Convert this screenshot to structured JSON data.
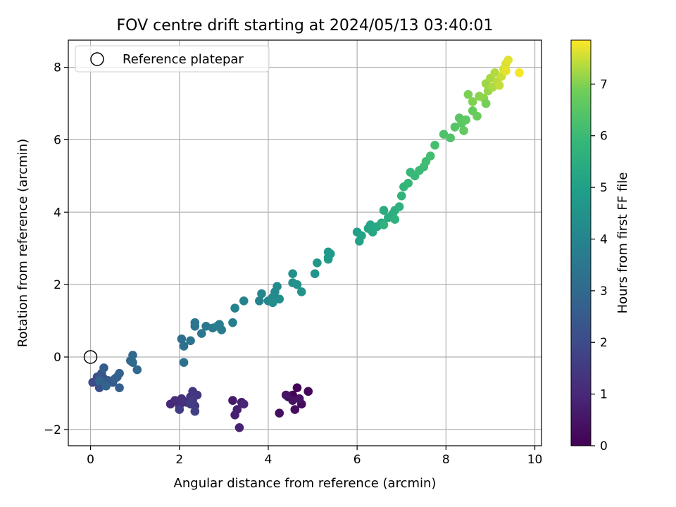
{
  "chart_data": {
    "type": "scatter",
    "title": "FOV centre drift starting at 2024/05/13 03:40:01",
    "xlabel": "Angular distance from reference (arcmin)",
    "ylabel": "Rotation from reference (arcmin)",
    "xlim": [
      -0.5,
      10.15
    ],
    "ylim": [
      -2.45,
      8.75
    ],
    "x_ticks": [
      0,
      2,
      4,
      6,
      8,
      10
    ],
    "y_ticks": [
      -2,
      0,
      2,
      4,
      6,
      8
    ],
    "grid": true,
    "legend": {
      "placement": "top-left",
      "entries": [
        "Reference platepar"
      ]
    },
    "reference_point": {
      "x": 0,
      "y": 0,
      "label": "Reference platepar"
    },
    "colorbar": {
      "label": "Hours from first FF file",
      "range": [
        0,
        7.85
      ],
      "ticks": [
        0,
        1,
        2,
        3,
        4,
        5,
        6,
        7
      ],
      "colormap": "viridis"
    },
    "points": [
      [
        4.55,
        -1.05,
        0.05
      ],
      [
        4.65,
        -0.85,
        0.1
      ],
      [
        4.9,
        -0.95,
        0.15
      ],
      [
        4.45,
        -1.1,
        0.2
      ],
      [
        4.75,
        -1.3,
        0.25
      ],
      [
        4.6,
        -1.45,
        0.3
      ],
      [
        4.25,
        -1.55,
        0.35
      ],
      [
        4.55,
        -1.2,
        0.4
      ],
      [
        4.7,
        -1.15,
        0.45
      ],
      [
        4.4,
        -1.05,
        0.5
      ],
      [
        3.2,
        -1.2,
        0.6
      ],
      [
        3.4,
        -1.25,
        0.7
      ],
      [
        3.3,
        -1.45,
        0.75
      ],
      [
        3.25,
        -1.6,
        0.8
      ],
      [
        3.35,
        -1.95,
        0.85
      ],
      [
        3.45,
        -1.3,
        0.9
      ],
      [
        1.8,
        -1.3,
        1.0
      ],
      [
        1.9,
        -1.2,
        1.1
      ],
      [
        2.0,
        -1.35,
        1.15
      ],
      [
        2.05,
        -1.15,
        1.2
      ],
      [
        2.15,
        -1.25,
        1.25
      ],
      [
        2.25,
        -1.1,
        1.3
      ],
      [
        2.3,
        -0.95,
        1.35
      ],
      [
        2.35,
        -1.35,
        1.4
      ],
      [
        2.4,
        -1.05,
        1.45
      ],
      [
        2.25,
        -1.3,
        1.5
      ],
      [
        2.3,
        -1.2,
        1.55
      ],
      [
        2.0,
        -1.45,
        1.6
      ],
      [
        2.35,
        -1.5,
        1.65
      ],
      [
        0.05,
        -0.7,
        2.0
      ],
      [
        0.15,
        -0.55,
        2.1
      ],
      [
        0.2,
        -0.85,
        2.2
      ],
      [
        0.3,
        -0.6,
        2.3
      ],
      [
        0.25,
        -0.45,
        2.35
      ],
      [
        0.35,
        -0.75,
        2.4
      ],
      [
        0.4,
        -0.65,
        2.45
      ],
      [
        0.5,
        -0.7,
        2.5
      ],
      [
        0.3,
        -0.3,
        2.55
      ],
      [
        0.6,
        -0.55,
        2.6
      ],
      [
        0.65,
        -0.85,
        2.65
      ],
      [
        0.65,
        -0.45,
        2.7
      ],
      [
        0.55,
        -0.6,
        2.75
      ],
      [
        0.35,
        -0.8,
        2.8
      ],
      [
        0.2,
        -0.65,
        2.85
      ],
      [
        0.9,
        -0.1,
        2.9
      ],
      [
        0.95,
        0.05,
        2.95
      ],
      [
        1.05,
        -0.35,
        3.0
      ],
      [
        0.95,
        -0.15,
        3.05
      ],
      [
        2.05,
        0.5,
        3.2
      ],
      [
        2.1,
        0.3,
        3.25
      ],
      [
        2.1,
        -0.15,
        3.3
      ],
      [
        2.25,
        0.45,
        3.35
      ],
      [
        2.35,
        0.85,
        3.4
      ],
      [
        2.35,
        0.95,
        3.45
      ],
      [
        2.5,
        0.65,
        3.5
      ],
      [
        2.6,
        0.85,
        3.55
      ],
      [
        2.75,
        0.8,
        3.6
      ],
      [
        2.9,
        0.9,
        3.65
      ],
      [
        2.95,
        0.75,
        3.7
      ],
      [
        2.85,
        0.85,
        3.75
      ],
      [
        3.2,
        0.95,
        3.8
      ],
      [
        3.25,
        1.35,
        3.9
      ],
      [
        3.45,
        1.55,
        3.95
      ],
      [
        3.8,
        1.55,
        4.0
      ],
      [
        3.85,
        1.75,
        4.05
      ],
      [
        4.0,
        1.55,
        4.1
      ],
      [
        4.1,
        1.65,
        4.15
      ],
      [
        4.15,
        1.8,
        4.2
      ],
      [
        4.2,
        1.95,
        4.25
      ],
      [
        4.25,
        1.6,
        4.3
      ],
      [
        4.1,
        1.5,
        4.35
      ],
      [
        4.55,
        2.05,
        4.4
      ],
      [
        4.55,
        2.3,
        4.45
      ],
      [
        4.65,
        2.0,
        4.5
      ],
      [
        4.75,
        1.8,
        4.55
      ],
      [
        5.05,
        2.3,
        4.6
      ],
      [
        5.1,
        2.6,
        4.65
      ],
      [
        5.35,
        2.75,
        4.7
      ],
      [
        5.35,
        2.9,
        4.75
      ],
      [
        5.4,
        2.85,
        4.8
      ],
      [
        5.35,
        2.7,
        4.85
      ],
      [
        6.0,
        3.45,
        5.0
      ],
      [
        6.05,
        3.2,
        5.05
      ],
      [
        6.1,
        3.35,
        5.1
      ],
      [
        6.25,
        3.55,
        5.15
      ],
      [
        6.3,
        3.65,
        5.2
      ],
      [
        6.35,
        3.45,
        5.25
      ],
      [
        6.45,
        3.6,
        5.3
      ],
      [
        6.55,
        3.7,
        5.35
      ],
      [
        6.6,
        4.05,
        5.4
      ],
      [
        6.7,
        3.85,
        5.45
      ],
      [
        6.8,
        3.95,
        5.5
      ],
      [
        6.85,
        4.05,
        5.55
      ],
      [
        6.95,
        4.15,
        5.6
      ],
      [
        6.85,
        3.8,
        5.65
      ],
      [
        6.6,
        3.65,
        5.7
      ],
      [
        7.0,
        4.45,
        5.75
      ],
      [
        7.05,
        4.7,
        5.8
      ],
      [
        7.15,
        4.8,
        5.85
      ],
      [
        7.2,
        5.1,
        5.9
      ],
      [
        7.3,
        5.0,
        5.95
      ],
      [
        7.4,
        5.15,
        6.0
      ],
      [
        7.5,
        5.25,
        6.05
      ],
      [
        7.55,
        5.4,
        6.1
      ],
      [
        7.65,
        5.55,
        6.15
      ],
      [
        7.75,
        5.85,
        6.2
      ],
      [
        7.95,
        6.15,
        6.3
      ],
      [
        8.1,
        6.05,
        6.35
      ],
      [
        8.2,
        6.35,
        6.45
      ],
      [
        8.3,
        6.6,
        6.5
      ],
      [
        8.35,
        6.45,
        6.55
      ],
      [
        8.45,
        6.55,
        6.6
      ],
      [
        8.4,
        6.25,
        6.65
      ],
      [
        8.6,
        6.8,
        6.75
      ],
      [
        8.7,
        6.65,
        6.8
      ],
      [
        8.5,
        7.25,
        6.95
      ],
      [
        8.6,
        7.05,
        7.0
      ],
      [
        8.75,
        7.2,
        7.05
      ],
      [
        8.85,
        7.15,
        7.1
      ],
      [
        8.95,
        7.35,
        7.15
      ],
      [
        8.9,
        7.55,
        7.2
      ],
      [
        9.0,
        7.7,
        7.25
      ],
      [
        9.05,
        7.45,
        7.3
      ],
      [
        9.1,
        7.85,
        7.35
      ],
      [
        9.15,
        7.6,
        7.4
      ],
      [
        9.2,
        7.5,
        7.45
      ],
      [
        9.25,
        7.75,
        7.5
      ],
      [
        9.3,
        7.95,
        7.55
      ],
      [
        9.35,
        8.1,
        7.6
      ],
      [
        9.4,
        8.2,
        7.65
      ],
      [
        9.35,
        7.9,
        7.7
      ],
      [
        9.65,
        7.85,
        7.8
      ],
      [
        8.9,
        7.0,
        6.9
      ]
    ]
  }
}
